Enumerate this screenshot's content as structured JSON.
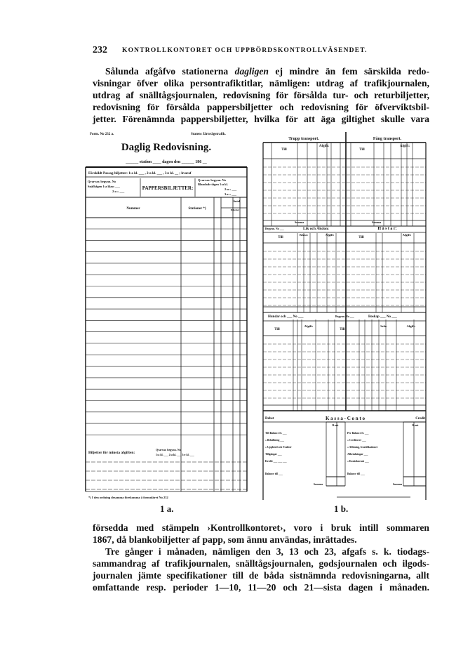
{
  "header": {
    "page_number": "232",
    "running_title": "KONTROLLKONTORET OCH UPPBÖRDSKONTROLLVÄSENDET."
  },
  "paragraph_1": {
    "line_1_start": "Sålunda afgåfvo stationerna ",
    "line_1_italic": "dagligen",
    "line_1_end": " ej mindre än fem särskilda redo-",
    "lines": [
      "visningar öfver olika persontrafiktitlar, nämligen: utdrag af trafikjournalen,",
      "utdrag af snälltågsjournalen, redovisning för försålda tur- och returbiljetter,",
      "redovisning för försålda pappersbiljetter och redovisning för öfverviktsbil-",
      "jetter. Förenämnda pappersbiljetter, hvilka för att äga giltighet skulle vara"
    ]
  },
  "figure_1a": {
    "form_number": "Form. No 232 a.",
    "issuer": "Statens Järnvägstrafik.",
    "title": "Daglig Redovisning.",
    "date_line": "______ station ____ dagen den ______ 186 __",
    "row_passage": "Förskildt Passag-biljetter:   1:a kl. ___ , 2:a kl. ___ , 3:e kl. __ ; hvaraf",
    "left_block": [
      "Qvarvar. begynn. No",
      "Snälltågen 1:a klass ___",
      "2:a  » ___"
    ],
    "center_box": "PAPPERSBILJETTER:",
    "right_block": [
      "Qvarvar. begynn. No",
      "Blandade tågen 1:a kl.",
      "2:a  » ___",
      "3:e  » ___"
    ],
    "col_number": "Nummer",
    "col_stations": "Stationer *)",
    "col_count": "Antal",
    "col_tickets": "Biljetter",
    "min_fare_label": "Biljetter för minsta afgiften:",
    "min_fare_detail": [
      "Qvarvar. begynn. No",
      "1:a kl. ___ 2:a kl. ___ 3:e kl. ___"
    ],
    "footnote": "*) I den ordning desamma förekomma å formuläret No 232",
    "caption": "1 a."
  },
  "figure_1b": {
    "s1_left_title": "Trupp transport.",
    "s1_right_title": "Fång transport.",
    "col_till": "Till",
    "col_afgift": "Afgift:",
    "col_klass": "Klass:",
    "col_antal": "Antal",
    "summa": "Summa",
    "s2_left_title": "Lik och Åkdon:",
    "s2_left_prefix": "Begynn. No ___",
    "s2_right_title": "H ä s t a r:",
    "s3_left_title": "Hundar och ___ No ___",
    "s3_mid": "Begynn. No ___",
    "s3_right_title": "Boskap ___ No ___",
    "s3_sela": "Sela:",
    "debet": "Debet",
    "kassa_title": "K a s s a - C o n t o",
    "credit": "Credit",
    "amount_header": "R:mt",
    "debet_items": [
      "Till Balance fr. ___",
      "» Behållning ___",
      "» Uppbörd och Frakter",
      "Tillgångar ___",
      "Kredit ___ ___ ___",
      "Balance till ___"
    ],
    "credit_items": [
      "Per Balance fr. ___",
      "» Creditorer ___",
      "» Aflöning, Gratifikationer",
      "Afbetalningar ___",
      "» Kontokurant ___",
      "Balance till ___"
    ],
    "caption": "1 b."
  },
  "paragraph_2": {
    "lines": [
      "försedda med stämpeln ›Kontrollkontoret›, voro i bruk intill sommaren",
      "1867, då blankobiljetter af papp, som ännu användas, inrättades."
    ]
  },
  "paragraph_3": {
    "lines": [
      "Tre gånger i månaden, nämligen den 3, 13 och 23, afgafs s. k. tiodags-",
      "sammandrag af trafikjournalen, snälltågsjournalen, godsjournalen och ilgods-",
      "journalen jämte specifikationer till de båda sistnämnda redovisningarna, allt",
      "omfattande resp. perioder 1—10, 11—20 och 21—sista dagen i månaden."
    ]
  }
}
